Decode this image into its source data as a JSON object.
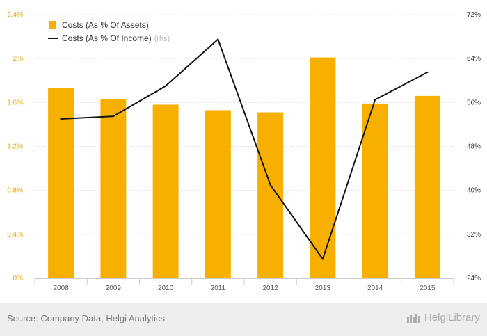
{
  "chart_data": {
    "type": "bar",
    "title": "",
    "categories": [
      "2008",
      "2009",
      "2010",
      "2011",
      "2012",
      "2013",
      "2014",
      "2015"
    ],
    "series": [
      {
        "name": "Costs (As % Of Assets)",
        "type": "bar",
        "axis": "left",
        "color": "#f8b000",
        "values": [
          1.73,
          1.63,
          1.58,
          1.53,
          1.51,
          2.01,
          1.59,
          1.66
        ]
      },
      {
        "name": "Costs (As % Of Income)",
        "type": "line",
        "axis": "right",
        "color": "#111111",
        "values": [
          53.0,
          53.5,
          59.0,
          67.5,
          41.0,
          27.5,
          56.5,
          61.5
        ]
      }
    ],
    "left_axis": {
      "ylim": [
        0,
        2.4
      ],
      "ticks": [
        0,
        0.4,
        0.8,
        1.2,
        1.6,
        2.0,
        2.4
      ],
      "tick_labels": [
        "0%",
        "0.4%",
        "0.8%",
        "1.2%",
        "1.6%",
        "2%",
        "2.4%"
      ]
    },
    "right_axis": {
      "ylim": [
        24,
        72
      ],
      "ticks": [
        24,
        32,
        40,
        48,
        56,
        64,
        72
      ],
      "tick_labels": [
        "24%",
        "32%",
        "40%",
        "48%",
        "56%",
        "64%",
        "72%"
      ]
    },
    "legend": {
      "position": "top-left",
      "bar_label": "Costs (As % Of Assets)",
      "line_label": "Costs (As % Of Income)",
      "rhs_label": "(rhs)"
    },
    "grid": true
  },
  "footer": {
    "source": "Source: Company Data, Helgi Analytics",
    "logo_text": "HelgiLibrary"
  }
}
